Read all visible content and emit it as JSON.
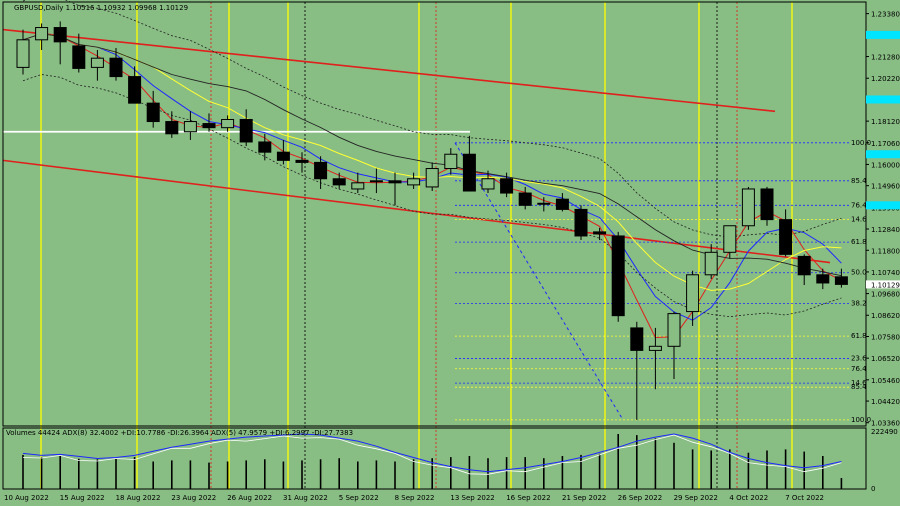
{
  "header": {
    "symbol_line": "GBPUSD,Daily 1.10516 1.10932 1.09968 1.10129",
    "indicator_line": "Volumes 44424 ADX(8) 32.4002 +DI:10.7786 -DI:26.3964 ADX(5) 47.9579 +DI:6.2997 -DI:27.7383"
  },
  "chart_data": {
    "type": "candlestick",
    "symbol": "GBPUSD",
    "timeframe": "Daily",
    "y_ticks": [
      "1.23380",
      "1.22340",
      "1.21280",
      "1.20220",
      "1.19180",
      "1.18120",
      "1.17060",
      "1.16000",
      "1.14960",
      "1.13900",
      "1.12840",
      "1.11800",
      "1.10740",
      "1.09680",
      "1.08620",
      "1.07580",
      "1.06520",
      "1.05460",
      "1.04420",
      "1.03360"
    ],
    "ylim": [
      1.032,
      1.2395
    ],
    "current_price": "1.10129",
    "x_ticks": [
      {
        "i": 0,
        "label": "10 Aug 2022"
      },
      {
        "i": 3,
        "label": "15 Aug 2022"
      },
      {
        "i": 6,
        "label": "18 Aug 2022"
      },
      {
        "i": 9,
        "label": "23 Aug 2022"
      },
      {
        "i": 12,
        "label": "26 Aug 2022"
      },
      {
        "i": 15,
        "label": "31 Aug 2022"
      },
      {
        "i": 18,
        "label": "5 Sep 2022"
      },
      {
        "i": 21,
        "label": "8 Sep 2022"
      },
      {
        "i": 24,
        "label": "13 Sep 2022"
      },
      {
        "i": 27,
        "label": "16 Sep 2022"
      },
      {
        "i": 30,
        "label": "21 Sep 2022"
      },
      {
        "i": 33,
        "label": "26 Sep 2022"
      },
      {
        "i": 36,
        "label": "29 Sep 2022"
      },
      {
        "i": 39,
        "label": "4 Oct 2022"
      },
      {
        "i": 42,
        "label": "7 Oct 2022"
      }
    ],
    "candles": [
      [
        1.2075,
        1.226,
        1.204,
        1.221
      ],
      [
        1.221,
        1.229,
        1.216,
        1.227
      ],
      [
        1.227,
        1.23,
        1.209,
        1.22
      ],
      [
        1.218,
        1.224,
        1.205,
        1.207
      ],
      [
        1.2075,
        1.216,
        1.201,
        1.212
      ],
      [
        1.212,
        1.217,
        1.201,
        1.203
      ],
      [
        1.203,
        1.208,
        1.19,
        1.19
      ],
      [
        1.19,
        1.196,
        1.178,
        1.181
      ],
      [
        1.181,
        1.186,
        1.173,
        1.175
      ],
      [
        1.176,
        1.186,
        1.172,
        1.181
      ],
      [
        1.18,
        1.185,
        1.176,
        1.178
      ],
      [
        1.178,
        1.184,
        1.176,
        1.182
      ],
      [
        1.182,
        1.187,
        1.169,
        1.171
      ],
      [
        1.171,
        1.175,
        1.162,
        1.166
      ],
      [
        1.166,
        1.172,
        1.16,
        1.162
      ],
      [
        1.162,
        1.166,
        1.156,
        1.161
      ],
      [
        1.161,
        1.164,
        1.148,
        1.153
      ],
      [
        1.153,
        1.156,
        1.148,
        1.15
      ],
      [
        1.148,
        1.156,
        1.146,
        1.151
      ],
      [
        1.152,
        1.158,
        1.146,
        1.152
      ],
      [
        1.152,
        1.156,
        1.14,
        1.151
      ],
      [
        1.15,
        1.156,
        1.148,
        1.153
      ],
      [
        1.149,
        1.161,
        1.147,
        1.158
      ],
      [
        1.158,
        1.168,
        1.155,
        1.165
      ],
      [
        1.165,
        1.174,
        1.148,
        1.147
      ],
      [
        1.148,
        1.157,
        1.146,
        1.153
      ],
      [
        1.153,
        1.156,
        1.144,
        1.146
      ],
      [
        1.146,
        1.149,
        1.138,
        1.14
      ],
      [
        1.141,
        1.144,
        1.137,
        1.141
      ],
      [
        1.143,
        1.146,
        1.137,
        1.138
      ],
      [
        1.138,
        1.14,
        1.123,
        1.125
      ],
      [
        1.127,
        1.129,
        1.123,
        1.126
      ],
      [
        1.125,
        1.127,
        1.083,
        1.086
      ],
      [
        1.08,
        1.083,
        1.035,
        1.069
      ],
      [
        1.069,
        1.08,
        1.05,
        1.071
      ],
      [
        1.071,
        1.088,
        1.055,
        1.087
      ],
      [
        1.088,
        1.108,
        1.081,
        1.106
      ],
      [
        1.106,
        1.121,
        1.104,
        1.117
      ],
      [
        1.117,
        1.13,
        1.114,
        1.13
      ],
      [
        1.13,
        1.149,
        1.128,
        1.148
      ],
      [
        1.148,
        1.149,
        1.13,
        1.133
      ],
      [
        1.133,
        1.138,
        1.115,
        1.116
      ],
      [
        1.115,
        1.116,
        1.101,
        1.106
      ],
      [
        1.106,
        1.109,
        1.099,
        1.102
      ],
      [
        1.105,
        1.109,
        1.0997,
        1.1013
      ]
    ],
    "fib_levels": [
      {
        "label": "100.0",
        "price": 1.1706,
        "color": "#1e28ff"
      },
      {
        "label": "85.4",
        "price": 1.152,
        "color": "#1e28ff"
      },
      {
        "label": "76.4",
        "price": 1.14,
        "color": "#1e28ff"
      },
      {
        "label": "61.8",
        "price": 1.122,
        "color": "#1e28ff"
      },
      {
        "label": "50.0",
        "price": 1.107,
        "color": "#1e28ff"
      },
      {
        "label": "38.2",
        "price": 1.092,
        "color": "#1e28ff"
      },
      {
        "label": "23.6",
        "price": 1.065,
        "color": "#1e28ff"
      },
      {
        "label": "14.6",
        "price": 1.053,
        "color": "#1e28ff"
      },
      {
        "label": "14.6",
        "price": 1.133,
        "color": "#ffff33"
      },
      {
        "label": "61.8",
        "price": 1.076,
        "color": "#ffff33"
      },
      {
        "label": "76.4",
        "price": 1.06,
        "color": "#ffff33"
      },
      {
        "label": "85.4",
        "price": 1.051,
        "color": "#ffff33"
      },
      {
        "label": "100.0",
        "price": 1.035,
        "color": "#ffff33"
      }
    ],
    "volumes": [
      62,
      58,
      60,
      55,
      54,
      56,
      58,
      50,
      52,
      52,
      48,
      50,
      52,
      54,
      50,
      52,
      54,
      56,
      50,
      52,
      50,
      54,
      56,
      58,
      60,
      56,
      58,
      58,
      56,
      60,
      62,
      64,
      100,
      98,
      92,
      84,
      72,
      70,
      72,
      66,
      70,
      72,
      68,
      60,
      20
    ],
    "volume_max_label": "222490",
    "volume_min_label": "0"
  }
}
